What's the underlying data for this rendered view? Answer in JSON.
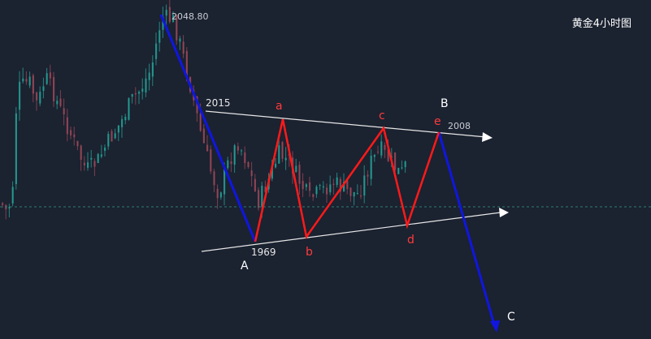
{
  "title": "黄金4小时图",
  "chart_data": {
    "type": "line",
    "price_labels": {
      "high": "2048.80",
      "upper_left": "2015",
      "lower_left": "1969",
      "upper_right": "2008"
    },
    "wave_labels": {
      "A": "A",
      "B": "B",
      "C": "C",
      "a": "a",
      "b": "b",
      "c": "c",
      "d": "d",
      "e": "e"
    },
    "colors": {
      "background": "#1b2230",
      "bull": "#26a69a",
      "bear": "#a04a5a",
      "impulse": "#1016e0",
      "triangle": "#ff1a1a",
      "trendline": "#e6e6e6",
      "label": "#ffffff",
      "triangle_label": "#ff3b3b"
    }
  }
}
